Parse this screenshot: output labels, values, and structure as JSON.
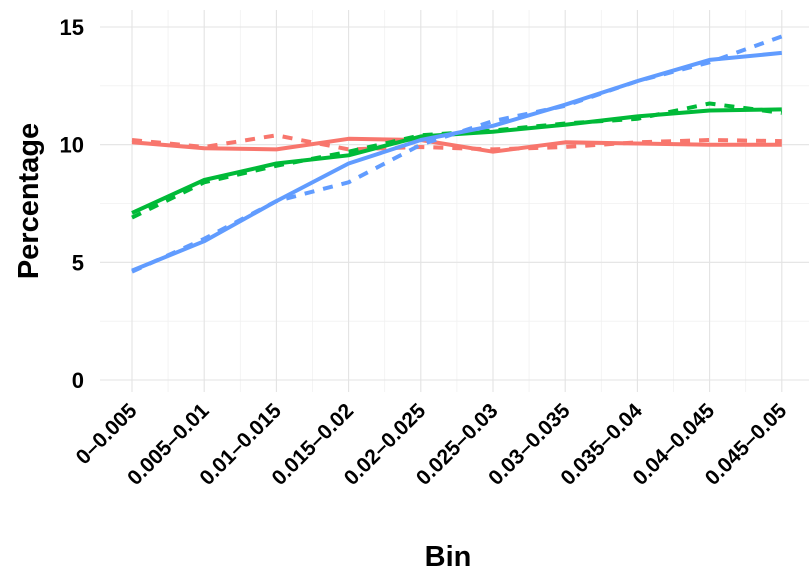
{
  "chart_data": {
    "type": "line",
    "title": "",
    "xlabel": "Bin",
    "ylabel": "Percentage",
    "categories": [
      "0–0.005",
      "0.005–0.01",
      "0.01–0.015",
      "0.015–0.02",
      "0.02–0.025",
      "0.025–0.03",
      "0.03–0.035",
      "0.035–0.04",
      "0.04–0.045",
      "0.045–0.05"
    ],
    "ylim": [
      0,
      15
    ],
    "yticks": [
      0,
      5,
      10,
      15
    ],
    "ytick_labels": [
      "0",
      "5",
      "10",
      "15"
    ],
    "grid": true,
    "legend": "none",
    "series": [
      {
        "color": "#F8766D",
        "linestyle": "solid",
        "values": [
          10.1,
          9.85,
          9.8,
          10.25,
          10.2,
          9.7,
          10.1,
          10.05,
          10.0,
          10.0
        ]
      },
      {
        "color": "#F8766D",
        "linestyle": "dashed",
        "values": [
          10.2,
          9.9,
          10.4,
          9.8,
          9.9,
          9.8,
          9.9,
          10.1,
          10.2,
          10.15
        ]
      },
      {
        "color": "#00BA38",
        "linestyle": "solid",
        "values": [
          7.1,
          8.5,
          9.2,
          9.55,
          10.35,
          10.55,
          10.85,
          11.2,
          11.45,
          11.5
        ]
      },
      {
        "color": "#00BA38",
        "linestyle": "dashed",
        "values": [
          6.9,
          8.4,
          9.1,
          9.7,
          10.4,
          10.6,
          10.9,
          11.1,
          11.75,
          11.35
        ]
      },
      {
        "color": "#619CFF",
        "linestyle": "solid",
        "values": [
          4.65,
          5.9,
          7.6,
          9.2,
          10.2,
          10.8,
          11.7,
          12.7,
          13.6,
          13.9
        ]
      },
      {
        "color": "#619CFF",
        "linestyle": "dashed",
        "values": [
          4.6,
          6.0,
          7.6,
          8.4,
          10.0,
          11.0,
          11.65,
          12.7,
          13.5,
          14.6
        ]
      }
    ]
  }
}
